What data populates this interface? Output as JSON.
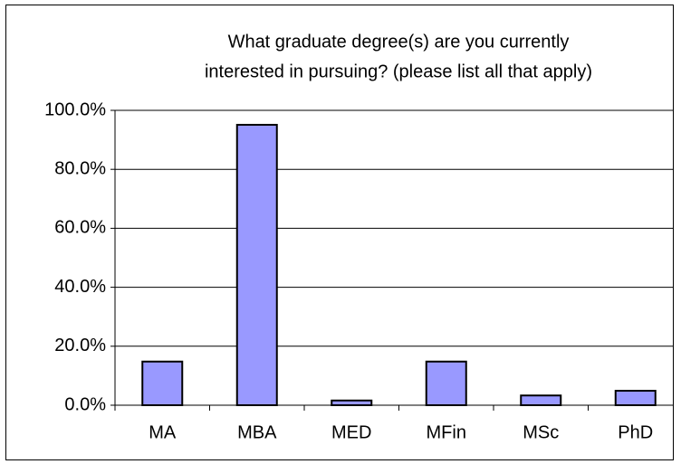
{
  "chart_data": {
    "type": "bar",
    "title": [
      "What graduate degree(s) are you currently",
      "interested in pursuing? (please list all that apply)"
    ],
    "categories": [
      "MA",
      "MBA",
      "MED",
      "MFin",
      "MSc",
      "PhD"
    ],
    "values": [
      14.8,
      95.1,
      1.6,
      14.8,
      3.3,
      4.9
    ],
    "color": "#9999ff",
    "ylim": [
      0,
      100
    ],
    "yticks": [
      {
        "value": 0,
        "label": "0.0%"
      },
      {
        "value": 20,
        "label": "20.0%"
      },
      {
        "value": 40,
        "label": "40.0%"
      },
      {
        "value": 60,
        "label": "60.0%"
      },
      {
        "value": 80,
        "label": "80.0%"
      },
      {
        "value": 100,
        "label": "100.0%"
      }
    ],
    "grid": true
  }
}
